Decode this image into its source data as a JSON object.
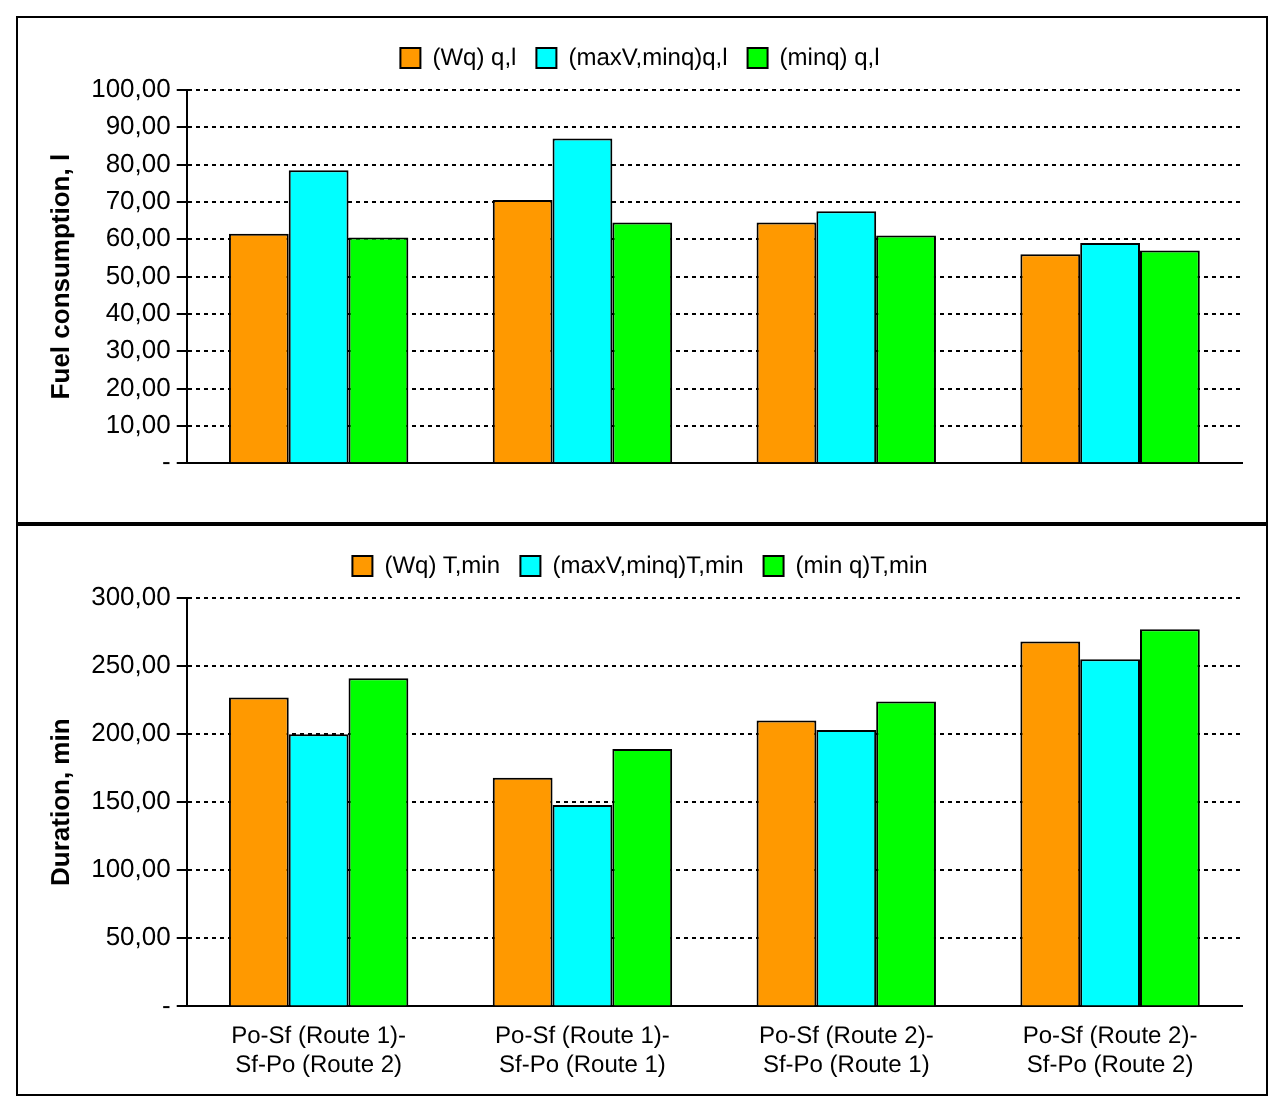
{
  "chart_data": [
    {
      "type": "bar",
      "ylabel": "Fuel consumption, l",
      "categories": [
        null,
        null,
        null,
        null
      ],
      "ylim": [
        0,
        100
      ],
      "yticks": [
        {
          "value": 0,
          "label": "-"
        },
        {
          "value": 10,
          "label": "10,00"
        },
        {
          "value": 20,
          "label": "20,00"
        },
        {
          "value": 30,
          "label": "30,00"
        },
        {
          "value": 40,
          "label": "40,00"
        },
        {
          "value": 50,
          "label": "50,00"
        },
        {
          "value": 60,
          "label": "60,00"
        },
        {
          "value": 70,
          "label": "70,00"
        },
        {
          "value": 80,
          "label": "80,00"
        },
        {
          "value": 90,
          "label": "90,00"
        },
        {
          "value": 100,
          "label": "100,00"
        }
      ],
      "grid": "y",
      "legend": "top",
      "series": [
        {
          "name": "(Wq) q,l",
          "color": "#ff9900",
          "values": [
            61.5,
            70.5,
            64.5,
            56
          ]
        },
        {
          "name": "(maxV,minq)q,l",
          "color": "#00ffff",
          "values": [
            78.5,
            87,
            67.5,
            59
          ]
        },
        {
          "name": "(minq) q,l",
          "color": "#00ff00",
          "values": [
            60.5,
            64.5,
            61,
            57
          ]
        }
      ]
    },
    {
      "type": "bar",
      "ylabel": "Duration, min",
      "categories": [
        "Po-Sf (Route 1)-Sf-Po (Route 2)",
        "Po-Sf (Route 1)-Sf-Po (Route 1)",
        "Po-Sf (Route 2)-Sf-Po (Route 1)",
        "Po-Sf (Route 2)-Sf-Po (Route 2)"
      ],
      "ylim": [
        0,
        300
      ],
      "yticks": [
        {
          "value": 0,
          "label": "-"
        },
        {
          "value": 50,
          "label": "50,00"
        },
        {
          "value": 100,
          "label": "100,00"
        },
        {
          "value": 150,
          "label": "150,00"
        },
        {
          "value": 200,
          "label": "200,00"
        },
        {
          "value": 250,
          "label": "250,00"
        },
        {
          "value": 300,
          "label": "300,00"
        }
      ],
      "grid": "y",
      "legend": "top",
      "series": [
        {
          "name": "(Wq) T,min",
          "color": "#ff9900",
          "values": [
            227,
            168,
            210,
            268
          ]
        },
        {
          "name": "(maxV,minq)T,min",
          "color": "#00ffff",
          "values": [
            200,
            148,
            203,
            255
          ]
        },
        {
          "name": "(min q)T,min",
          "color": "#00ff00",
          "values": [
            241,
            189,
            224,
            277
          ]
        }
      ]
    }
  ]
}
